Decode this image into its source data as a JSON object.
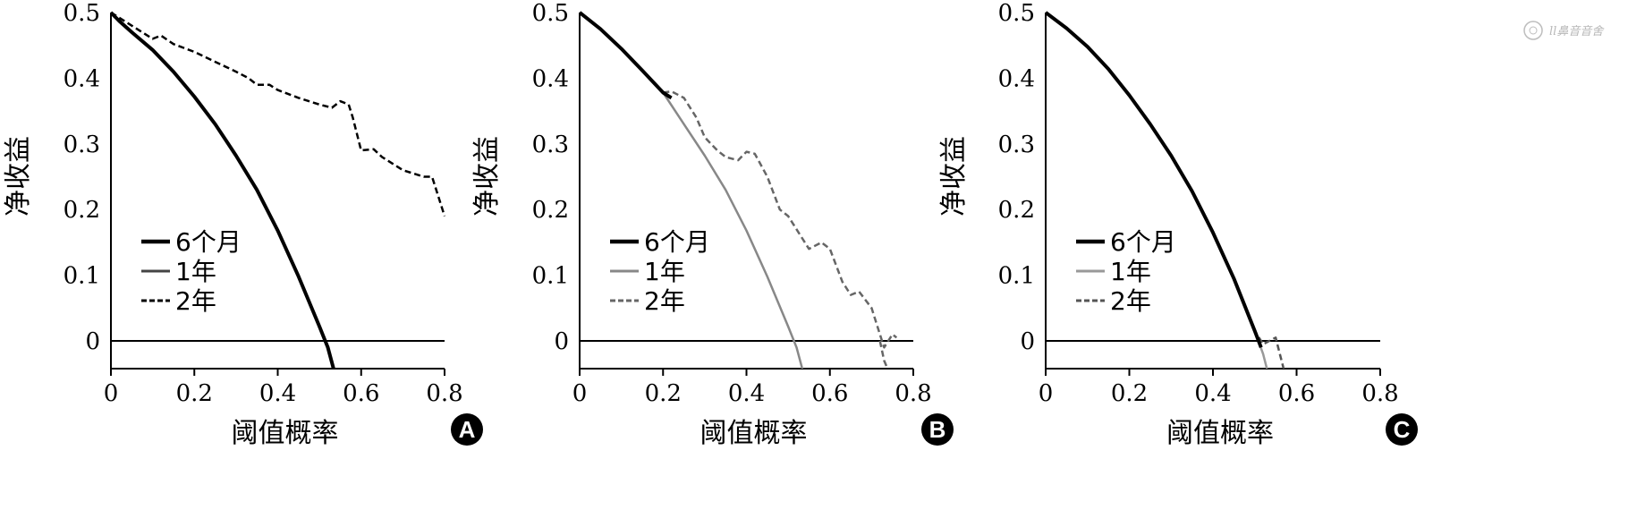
{
  "chart_data": [
    {
      "type": "line",
      "panel": "A",
      "xlabel": "阈值概率",
      "ylabel": "净收益",
      "xlim": [
        0,
        0.8
      ],
      "ylim": [
        -0.05,
        0.5
      ],
      "x_ticks": [
        "0",
        "0.2",
        "0.4",
        "0.6",
        "0.8"
      ],
      "y_ticks": [
        "0",
        "0.1",
        "0.2",
        "0.3",
        "0.4",
        "0.5"
      ],
      "legend_position": "lower-left",
      "series": [
        {
          "name": "6个月",
          "style": "solid-thick",
          "color": "#000000",
          "x": [
            0,
            0.02,
            0.05,
            0.1,
            0.15,
            0.2,
            0.25,
            0.3,
            0.35,
            0.4,
            0.45,
            0.5,
            0.52,
            0.535
          ],
          "y": [
            0.5,
            0.487,
            0.47,
            0.443,
            0.41,
            0.372,
            0.33,
            0.282,
            0.23,
            0.168,
            0.098,
            0.022,
            -0.01,
            -0.045
          ]
        },
        {
          "name": "1年",
          "style": "solid",
          "color": "#444444",
          "x": [
            0,
            0.02,
            0.05,
            0.1,
            0.15,
            0.2,
            0.25,
            0.3,
            0.35,
            0.4,
            0.45,
            0.5,
            0.52,
            0.535
          ],
          "y": [
            0.5,
            0.487,
            0.47,
            0.443,
            0.41,
            0.372,
            0.33,
            0.282,
            0.23,
            0.168,
            0.098,
            0.022,
            -0.01,
            -0.045
          ]
        },
        {
          "name": "2年",
          "style": "dashed",
          "color": "#000000",
          "x": [
            0,
            0.05,
            0.1,
            0.12,
            0.15,
            0.2,
            0.25,
            0.3,
            0.33,
            0.35,
            0.38,
            0.4,
            0.45,
            0.5,
            0.53,
            0.55,
            0.57,
            0.58,
            0.6,
            0.63,
            0.65,
            0.7,
            0.75,
            0.77,
            0.78,
            0.8
          ],
          "y": [
            0.5,
            0.48,
            0.46,
            0.465,
            0.452,
            0.44,
            0.425,
            0.41,
            0.4,
            0.39,
            0.39,
            0.382,
            0.37,
            0.36,
            0.355,
            0.365,
            0.36,
            0.34,
            0.29,
            0.292,
            0.28,
            0.26,
            0.25,
            0.25,
            0.23,
            0.19
          ]
        }
      ]
    },
    {
      "type": "line",
      "panel": "B",
      "xlabel": "阈值概率",
      "ylabel": "净收益",
      "xlim": [
        0,
        0.8
      ],
      "ylim": [
        -0.05,
        0.5
      ],
      "x_ticks": [
        "0",
        "0.2",
        "0.4",
        "0.6",
        "0.8"
      ],
      "y_ticks": [
        "0",
        "0.1",
        "0.2",
        "0.3",
        "0.4",
        "0.5"
      ],
      "legend_position": "lower-left",
      "series": [
        {
          "name": "6个月",
          "style": "solid-thick",
          "color": "#000000",
          "x": [
            0,
            0.05,
            0.1,
            0.15,
            0.2,
            0.22
          ],
          "y": [
            0.5,
            0.475,
            0.445,
            0.412,
            0.378,
            0.37
          ]
        },
        {
          "name": "1年",
          "style": "solid",
          "color": "#888888",
          "x": [
            0,
            0.05,
            0.1,
            0.15,
            0.2,
            0.25,
            0.3,
            0.35,
            0.4,
            0.45,
            0.5,
            0.52,
            0.535
          ],
          "y": [
            0.5,
            0.475,
            0.445,
            0.412,
            0.378,
            0.33,
            0.282,
            0.23,
            0.168,
            0.098,
            0.022,
            -0.01,
            -0.045
          ]
        },
        {
          "name": "2年",
          "style": "dashed",
          "color": "#666666",
          "x": [
            0.2,
            0.22,
            0.25,
            0.28,
            0.3,
            0.33,
            0.35,
            0.38,
            0.4,
            0.42,
            0.45,
            0.48,
            0.5,
            0.53,
            0.55,
            0.58,
            0.6,
            0.63,
            0.65,
            0.67,
            0.7,
            0.72,
            0.73,
            0.75,
            0.76
          ],
          "y": [
            0.378,
            0.38,
            0.37,
            0.34,
            0.31,
            0.29,
            0.28,
            0.275,
            0.288,
            0.285,
            0.25,
            0.2,
            0.19,
            0.16,
            0.14,
            0.15,
            0.14,
            0.09,
            0.07,
            0.075,
            0.05,
            0.01,
            -0.01,
            0.01,
            0.005
          ]
        },
        {
          "name": "",
          "style": "dashed",
          "color": "#666666",
          "x": [
            0.72,
            0.73,
            0.74
          ],
          "y": [
            0.0,
            -0.03,
            -0.045
          ]
        }
      ]
    },
    {
      "type": "line",
      "panel": "C",
      "xlabel": "阈值概率",
      "ylabel": "净收益",
      "xlim": [
        0,
        0.8
      ],
      "ylim": [
        -0.05,
        0.5
      ],
      "x_ticks": [
        "0",
        "0.2",
        "0.4",
        "0.6",
        "0.8"
      ],
      "y_ticks": [
        "0",
        "0.1",
        "0.2",
        "0.3",
        "0.4",
        "0.5"
      ],
      "legend_position": "lower-left",
      "series": [
        {
          "name": "6个月",
          "style": "solid-thick",
          "color": "#000000",
          "x": [
            0,
            0.05,
            0.1,
            0.15,
            0.2,
            0.25,
            0.3,
            0.35,
            0.4,
            0.45,
            0.5,
            0.515
          ],
          "y": [
            0.5,
            0.476,
            0.448,
            0.414,
            0.374,
            0.33,
            0.282,
            0.228,
            0.165,
            0.095,
            0.015,
            -0.01
          ]
        },
        {
          "name": "1年",
          "style": "solid",
          "color": "#999999",
          "x": [
            0,
            0.05,
            0.1,
            0.15,
            0.2,
            0.25,
            0.3,
            0.35,
            0.4,
            0.45,
            0.5,
            0.52,
            0.53
          ],
          "y": [
            0.5,
            0.476,
            0.448,
            0.414,
            0.374,
            0.33,
            0.282,
            0.228,
            0.165,
            0.095,
            0.015,
            -0.02,
            -0.045
          ]
        },
        {
          "name": "2年",
          "style": "dashed",
          "color": "#555555",
          "x": [
            0,
            0.05,
            0.1,
            0.15,
            0.2,
            0.25,
            0.3,
            0.35,
            0.4,
            0.45,
            0.5,
            0.52,
            0.55,
            0.56,
            0.57
          ],
          "y": [
            0.5,
            0.476,
            0.448,
            0.414,
            0.374,
            0.33,
            0.282,
            0.228,
            0.165,
            0.095,
            0.015,
            -0.005,
            0.005,
            -0.02,
            -0.045
          ]
        }
      ]
    }
  ],
  "watermark": {
    "text": "ll鼻音音舍",
    "icon": "seal-icon"
  }
}
